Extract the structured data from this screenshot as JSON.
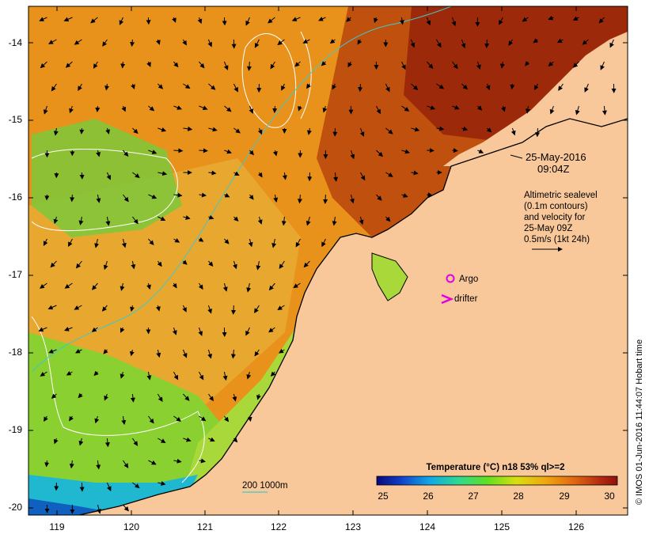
{
  "map": {
    "lat_ticks": [
      "-14",
      "-15",
      "-16",
      "-17",
      "-18",
      "-19",
      "-20"
    ],
    "lon_ticks": [
      "119",
      "120",
      "121",
      "122",
      "123",
      "124",
      "125",
      "126"
    ],
    "datetime_line1": "25-May-2016",
    "datetime_line2": "09:04Z",
    "legend_lines": [
      "Altimetric sealevel",
      "(0.1m contours)",
      "and velocity for",
      "25-May 09Z",
      "0.5m/s (1kt 24h)"
    ],
    "argo_label": "Argo",
    "drifter_label": "drifter",
    "isobath_label": "200  1000m",
    "colorbar_title": "Temperature (°C) n18 53% ql>=2",
    "colorbar_ticks": [
      "25",
      "26",
      "27",
      "28",
      "29",
      "30"
    ],
    "credit": "© IMOS 01-Jun-2016 11:44:07 Hobart time",
    "colors": {
      "land": "#f9c89a",
      "argo": "#e000e0",
      "drifter": "#e000e0",
      "isobath": "#40c8c8",
      "contour": "#ffffff"
    }
  }
}
